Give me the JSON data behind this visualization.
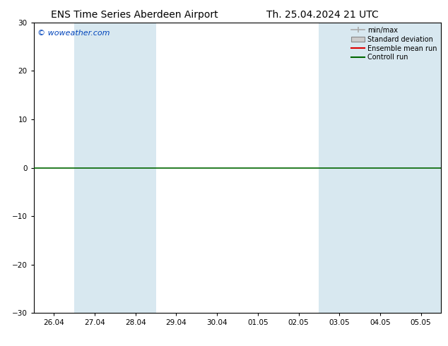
{
  "title_left": "ENS Time Series Aberdeen Airport",
  "title_right": "Th. 25.04.2024 21 UTC",
  "ylim": [
    -30,
    30
  ],
  "yticks": [
    -30,
    -20,
    -10,
    0,
    10,
    20,
    30
  ],
  "x_labels": [
    "26.04",
    "27.04",
    "28.04",
    "29.04",
    "30.04",
    "01.05",
    "02.05",
    "03.05",
    "04.05",
    "05.05"
  ],
  "shaded_columns": [
    1,
    2,
    7,
    8,
    9
  ],
  "shaded_color": "#d8e8f0",
  "background_color": "#ffffff",
  "watermark": "© woweather.com",
  "watermark_color": "#0044bb",
  "legend_items": [
    {
      "label": "min/max",
      "color": "#aaaaaa",
      "style": "errorbar"
    },
    {
      "label": "Standard deviation",
      "color": "#cccccc",
      "style": "box"
    },
    {
      "label": "Ensemble mean run",
      "color": "#dd0000",
      "style": "line"
    },
    {
      "label": "Controll run",
      "color": "#006600",
      "style": "line"
    }
  ],
  "zero_line_color": "#006600",
  "title_fontsize": 10,
  "tick_fontsize": 7.5,
  "legend_fontsize": 7
}
